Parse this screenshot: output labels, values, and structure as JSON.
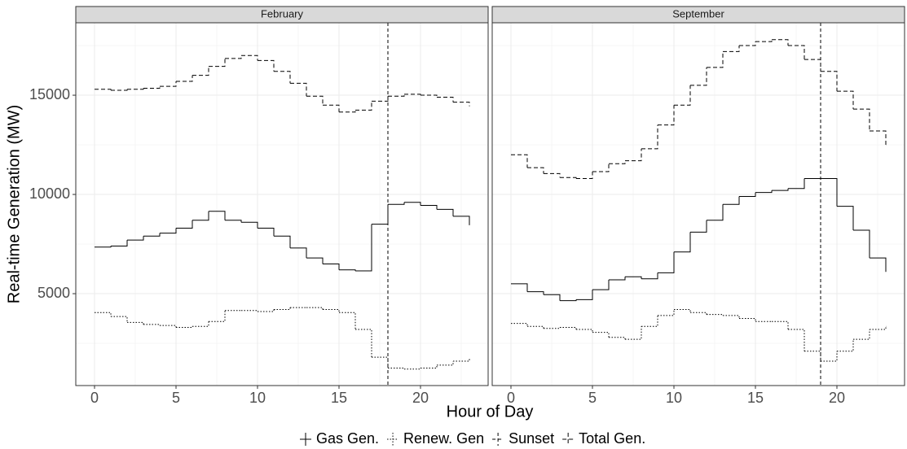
{
  "chart_data": {
    "type": "step",
    "xlabel": "Hour of Day",
    "ylabel": "Real-time Generation (MW)",
    "ylim": [
      370,
      18650
    ],
    "yticks": [
      5000,
      10000,
      15000
    ],
    "y_minor": [
      2500,
      7500,
      12500,
      17500
    ],
    "xlim": [
      -1.15,
      24.15
    ],
    "xticks": [
      0,
      5,
      10,
      15,
      20
    ],
    "x_minor": [
      2.5,
      7.5,
      12.5,
      17.5,
      22.5
    ],
    "grid": true,
    "series_styles": [
      {
        "name": "Gas Gen.",
        "color": "#000000",
        "dash": "none"
      },
      {
        "name": "Renew. Gen",
        "color": "#000000",
        "dash": "1.5,2"
      },
      {
        "name": "Sunset",
        "color": "#000000",
        "dash": "4,3"
      },
      {
        "name": "Total Gen.",
        "color": "#000000",
        "dash": "5,3"
      }
    ],
    "x": [
      0,
      1,
      2,
      3,
      4,
      5,
      6,
      7,
      8,
      9,
      10,
      11,
      12,
      13,
      14,
      15,
      16,
      17,
      18,
      19,
      20,
      21,
      22,
      23
    ],
    "panels": [
      {
        "title": "February",
        "sunset": 18,
        "series": [
          {
            "name": "Gas Gen.",
            "values": [
              7350,
              7400,
              7700,
              7900,
              8050,
              8300,
              8700,
              9150,
              8700,
              8600,
              8300,
              7900,
              7300,
              6800,
              6500,
              6200,
              6150,
              8500,
              9500,
              9600,
              9450,
              9250,
              8900,
              8450
            ]
          },
          {
            "name": "Renew. Gen",
            "values": [
              4050,
              3850,
              3550,
              3450,
              3400,
              3300,
              3350,
              3600,
              4150,
              4150,
              4100,
              4200,
              4300,
              4300,
              4200,
              4050,
              3200,
              1800,
              1250,
              1200,
              1250,
              1400,
              1600,
              1700
            ]
          },
          {
            "name": "Total Gen.",
            "values": [
              15300,
              15250,
              15300,
              15350,
              15450,
              15700,
              16000,
              16450,
              16850,
              17000,
              16750,
              16200,
              15600,
              14950,
              14500,
              14150,
              14250,
              14700,
              14950,
              15050,
              15000,
              14900,
              14650,
              14450
            ]
          }
        ]
      },
      {
        "title": "September",
        "sunset": 19,
        "series": [
          {
            "name": "Gas Gen.",
            "values": [
              5500,
              5100,
              4950,
              4650,
              4700,
              5200,
              5700,
              5850,
              5750,
              6050,
              7100,
              8100,
              8700,
              9500,
              9900,
              10100,
              10200,
              10300,
              10800,
              10800,
              9400,
              8200,
              6800,
              6100
            ]
          },
          {
            "name": "Renew. Gen",
            "values": [
              3500,
              3350,
              3250,
              3300,
              3200,
              3050,
              2800,
              2700,
              3350,
              3900,
              4200,
              4050,
              3950,
              3900,
              3750,
              3600,
              3600,
              3200,
              2100,
              1600,
              2100,
              2700,
              3200,
              3350
            ]
          },
          {
            "name": "Total Gen.",
            "values": [
              12000,
              11350,
              11050,
              10850,
              10800,
              11150,
              11550,
              11700,
              12300,
              13500,
              14500,
              15500,
              16400,
              17200,
              17500,
              17700,
              17800,
              17500,
              16800,
              16200,
              15200,
              14300,
              13200,
              12500
            ]
          }
        ]
      }
    ]
  }
}
